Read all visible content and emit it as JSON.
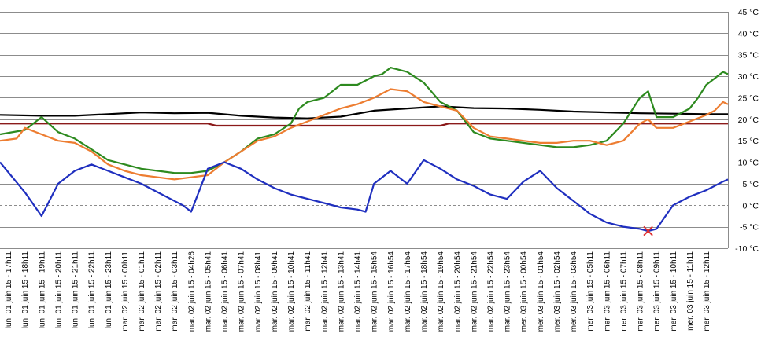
{
  "chart_data": {
    "type": "line",
    "title": "",
    "xlabel": "",
    "ylabel": "",
    "ylim": [
      -10,
      45
    ],
    "y_ticks": [
      "45 °C",
      "40 °C",
      "35 °C",
      "30 °C",
      "25 °C",
      "20 °C",
      "15 °C",
      "10 °C",
      "5 °C",
      "0 °C",
      "-5 °C",
      "-10 °C"
    ],
    "y_tick_values": [
      45,
      40,
      35,
      30,
      25,
      20,
      15,
      10,
      5,
      0,
      -5,
      -10
    ],
    "grid": true,
    "legend": "none",
    "x_tick_labels": [
      "lun. 01 juin 15 - 17h11",
      "lun. 01 juin 15 - 18h11",
      "lun. 01 juin 15 - 19h11",
      "lun. 01 juin 15 - 20h11",
      "lun. 01 juin 15 - 21h11",
      "lun. 01 juin 15 - 22h11",
      "lun. 01 juin 15 - 23h11",
      "mar. 02 juin 15 - 00h11",
      "mar. 02 juin 15 - 01h11",
      "mar. 02 juin 15 - 02h11",
      "mar. 02 juin 15 - 03h11",
      "mar. 02 juin 15 - 04h26",
      "mar. 02 juin 15 - 05h41",
      "mar. 02 juin 15 - 06h41",
      "mar. 02 juin 15 - 07h41",
      "mar. 02 juin 15 - 08h41",
      "mar. 02 juin 15 - 09h41",
      "mar. 02 juin 15 - 10h41",
      "mar. 02 juin 15 - 11h41",
      "mar. 02 juin 15 - 12h41",
      "mar. 02 juin 15 - 13h41",
      "mar. 02 juin 15 - 14h41",
      "mar. 02 juin 15 - 15h54",
      "mar. 02 juin 15 - 16h54",
      "mar. 02 juin 15 - 17h54",
      "mar. 02 juin 15 - 18h54",
      "mar. 02 juin 15 - 19h54",
      "mar. 02 juin 15 - 20h54",
      "mar. 02 juin 15 - 21h54",
      "mar. 02 juin 15 - 22h54",
      "mar. 02 juin 15 - 23h54",
      "mer. 03 juin 15 - 00h54",
      "mer. 03 juin 15 - 01h54",
      "mer. 03 juin 15 - 02h54",
      "mer. 03 juin 15 - 03h54",
      "mer. 03 juin 15 - 05h11",
      "mer. 03 juin 15 - 06h11",
      "mer. 03 juin 15 - 07h11",
      "mer. 03 juin 15 - 08h11",
      "mer. 03 juin 15 - 09h11",
      "mer. 03 juin 15 - 10h11",
      "mer. 03 juin 15 - 11h11",
      "mer. 03 juin 15 - 12h11"
    ],
    "x_domain": [
      -0.5,
      43.3
    ],
    "series": [
      {
        "color": "#000000",
        "x": [
          -0.5,
          2,
          4,
          6,
          8,
          10,
          12,
          14,
          16,
          18,
          20,
          22,
          24,
          26,
          28,
          30,
          32,
          34,
          36,
          38,
          40,
          42,
          43.3
        ],
        "y": [
          21,
          20.8,
          20.8,
          21.2,
          21.6,
          21.4,
          21.5,
          20.8,
          20.4,
          20.2,
          20.6,
          22,
          22.5,
          23,
          22.6,
          22.5,
          22.2,
          21.8,
          21.6,
          21.4,
          21.3,
          21.2,
          21.2
        ]
      },
      {
        "color": "#8b1a1a",
        "x": [
          -0.5,
          12,
          12.5,
          26,
          26.5,
          43.3
        ],
        "y": [
          19,
          19,
          18.5,
          18.5,
          19,
          19
        ]
      },
      {
        "color": "#2d8a1f",
        "x": [
          -0.5,
          1,
          2,
          3,
          4,
          5,
          6,
          7,
          8,
          9,
          10,
          11,
          12,
          13,
          14,
          15,
          16,
          17,
          17.5,
          18,
          19,
          20,
          21,
          22,
          22.5,
          23,
          24,
          25,
          26,
          27,
          28,
          29,
          30,
          31,
          32,
          33,
          34,
          35,
          36,
          37,
          38,
          38.5,
          39,
          40,
          41,
          41.5,
          42,
          43,
          43.3
        ],
        "y": [
          16.5,
          17.5,
          20.5,
          17,
          15.5,
          13,
          10.5,
          9.5,
          8.5,
          8,
          7.5,
          7.5,
          8,
          10,
          12.5,
          15.5,
          16.5,
          19,
          22.5,
          24,
          25,
          28,
          28,
          30,
          30.5,
          32,
          31,
          28.5,
          24,
          22,
          17,
          15.5,
          15,
          14.5,
          14,
          13.5,
          13.5,
          14,
          15,
          19,
          25,
          26.5,
          20.5,
          20.5,
          22.5,
          25,
          28,
          31,
          30.5
        ]
      },
      {
        "color": "#ed7d31",
        "x": [
          -0.5,
          0.5,
          1,
          2,
          3,
          4,
          5,
          6,
          7,
          8,
          9,
          10,
          11,
          12,
          13,
          14,
          15,
          16,
          17,
          18,
          19,
          20,
          21,
          22,
          23,
          24,
          25,
          26,
          27,
          28,
          29,
          30,
          31,
          32,
          33,
          34,
          35,
          36,
          37,
          38,
          38.5,
          39,
          40,
          41,
          42,
          42.5,
          43,
          43.3
        ],
        "y": [
          15,
          15.5,
          18,
          16.5,
          15,
          14.5,
          12.5,
          9.5,
          8,
          7,
          6.5,
          6,
          6.5,
          7,
          10,
          12.5,
          15,
          16,
          18,
          19.5,
          21,
          22.5,
          23.5,
          25,
          27,
          26.5,
          24,
          23,
          22,
          18,
          16,
          15.5,
          15,
          14.5,
          14.5,
          15,
          15,
          14,
          15,
          19,
          20,
          18,
          18,
          19.5,
          21,
          22,
          24,
          23.5
        ]
      },
      {
        "color": "#1f2fbf",
        "x": [
          -0.5,
          1,
          2,
          3,
          4,
          5,
          6,
          7,
          8,
          9,
          10,
          10.5,
          11,
          12,
          13,
          14,
          15,
          16,
          17,
          18,
          19,
          20,
          21,
          21.5,
          22,
          23,
          24,
          25,
          26,
          27,
          28,
          29,
          30,
          31,
          32,
          33,
          34,
          35,
          36,
          37,
          38,
          38.5,
          39,
          40,
          41,
          42,
          43,
          43.3
        ],
        "y": [
          10,
          3,
          -2.5,
          5,
          8,
          9.5,
          8,
          6.5,
          5,
          3,
          1,
          0,
          -1.5,
          8.5,
          10,
          8.5,
          6,
          4,
          2.5,
          1.5,
          0.5,
          -0.5,
          -1,
          -1.5,
          5,
          8,
          5,
          10.5,
          8.5,
          6,
          4.5,
          2.5,
          1.5,
          5.5,
          8,
          4,
          1,
          -2,
          -4,
          -5,
          -5.5,
          -6,
          -5.5,
          0,
          2,
          3.5,
          5.5,
          6
        ]
      }
    ],
    "marker": {
      "x": 38.5,
      "y": -6,
      "symbol": "×",
      "color": "#e03030"
    }
  }
}
